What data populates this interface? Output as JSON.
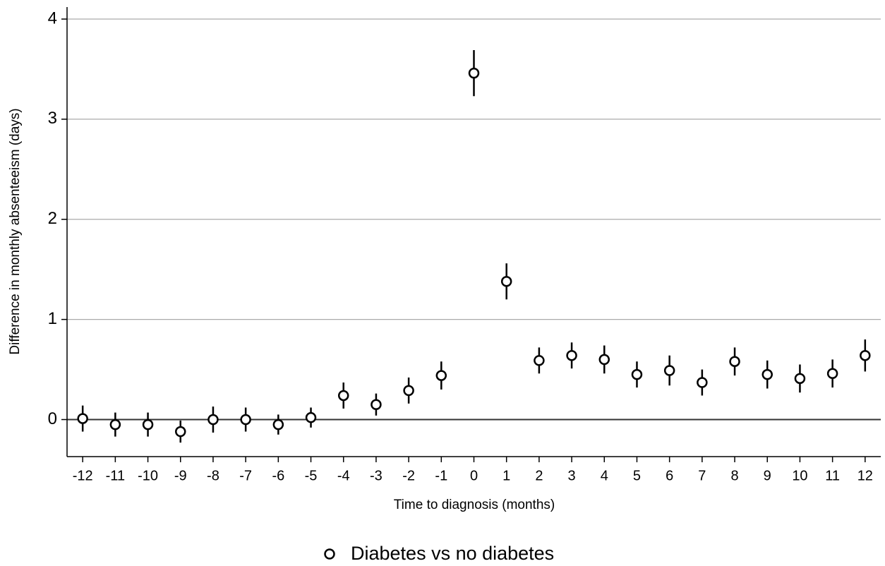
{
  "chart_data": {
    "type": "scatter",
    "x_label": "Time to diagnosis (months)",
    "y_label": "Difference in monthly absenteeism (days)",
    "x": [
      -12,
      -11,
      -10,
      -9,
      -8,
      -7,
      -6,
      -5,
      -4,
      -3,
      -2,
      -1,
      0,
      1,
      2,
      3,
      4,
      5,
      6,
      7,
      8,
      9,
      10,
      11,
      12
    ],
    "series": [
      {
        "name": "Diabetes vs no diabetes",
        "color": "#000000",
        "values": [
          0.01,
          -0.05,
          -0.05,
          -0.12,
          0.0,
          0.0,
          -0.05,
          0.02,
          0.24,
          0.15,
          0.29,
          0.44,
          3.46,
          1.38,
          0.59,
          0.64,
          0.6,
          0.45,
          0.49,
          0.37,
          0.58,
          0.45,
          0.41,
          0.46,
          0.64
        ],
        "errors": [
          0.13,
          0.12,
          0.12,
          0.11,
          0.13,
          0.12,
          0.1,
          0.1,
          0.13,
          0.11,
          0.13,
          0.14,
          0.23,
          0.18,
          0.13,
          0.13,
          0.14,
          0.13,
          0.15,
          0.13,
          0.14,
          0.14,
          0.14,
          0.14,
          0.16
        ]
      }
    ],
    "xlim": [
      -12.48,
      12.48
    ],
    "xticks": [
      -12,
      -11,
      -10,
      -9,
      -8,
      -7,
      -6,
      -5,
      -4,
      -3,
      -2,
      -1,
      0,
      1,
      2,
      3,
      4,
      5,
      6,
      7,
      8,
      9,
      10,
      11,
      12
    ],
    "ylim": [
      -0.37,
      4.12
    ],
    "yticks": [
      0,
      1,
      2,
      3,
      4
    ],
    "grid": true,
    "legend": "bottom"
  }
}
